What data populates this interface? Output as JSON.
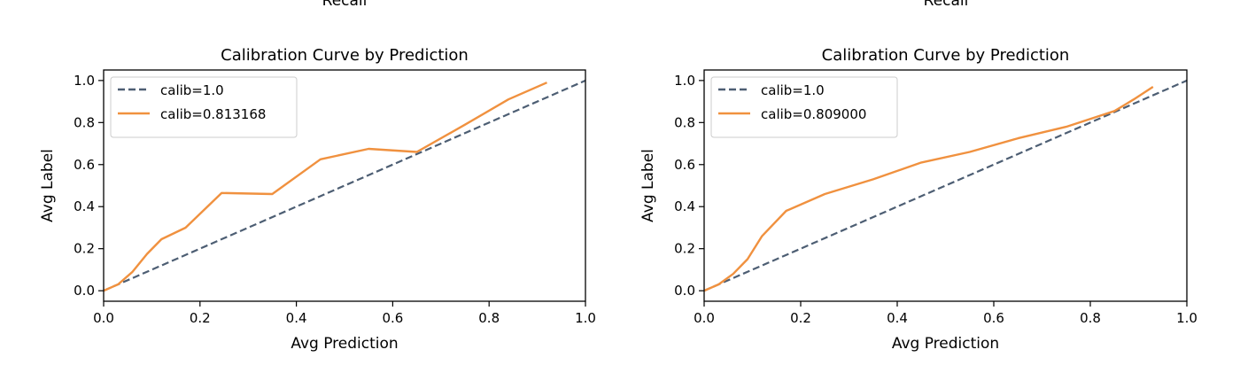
{
  "top_cut_text": [
    "Recall",
    "Recall"
  ],
  "chart_data": [
    {
      "type": "line",
      "title": "Calibration Curve by Prediction",
      "xlabel": "Avg Prediction",
      "ylabel": "Avg Label",
      "xlim": [
        0.0,
        1.0
      ],
      "ylim": [
        -0.05,
        1.05
      ],
      "xticks": [
        "0.0",
        "0.2",
        "0.4",
        "0.6",
        "0.8",
        "1.0"
      ],
      "yticks": [
        "0.0",
        "0.2",
        "0.4",
        "0.6",
        "0.8",
        "1.0"
      ],
      "grid": false,
      "legend_position": "top-left",
      "series": [
        {
          "name": "calib=1.0",
          "style": "dashed",
          "color": "#4d5e73",
          "x": [
            0.0,
            1.0
          ],
          "y": [
            0.0,
            1.0
          ]
        },
        {
          "name": "calib=0.813168",
          "style": "solid",
          "color": "#f0913f",
          "x": [
            0.0,
            0.03,
            0.06,
            0.09,
            0.12,
            0.17,
            0.245,
            0.35,
            0.45,
            0.55,
            0.65,
            0.75,
            0.84,
            0.92
          ],
          "y": [
            0.0,
            0.03,
            0.09,
            0.175,
            0.245,
            0.3,
            0.465,
            0.46,
            0.625,
            0.675,
            0.66,
            0.79,
            0.91,
            0.99
          ]
        }
      ]
    },
    {
      "type": "line",
      "title": "Calibration Curve by Prediction",
      "xlabel": "Avg Prediction",
      "ylabel": "Avg Label",
      "xlim": [
        0.0,
        1.0
      ],
      "ylim": [
        -0.05,
        1.05
      ],
      "xticks": [
        "0.0",
        "0.2",
        "0.4",
        "0.6",
        "0.8",
        "1.0"
      ],
      "yticks": [
        "0.0",
        "0.2",
        "0.4",
        "0.6",
        "0.8",
        "1.0"
      ],
      "grid": false,
      "legend_position": "top-left",
      "series": [
        {
          "name": "calib=1.0",
          "style": "dashed",
          "color": "#4d5e73",
          "x": [
            0.0,
            1.0
          ],
          "y": [
            0.0,
            1.0
          ]
        },
        {
          "name": "calib=0.809000",
          "style": "solid",
          "color": "#f0913f",
          "x": [
            0.0,
            0.03,
            0.06,
            0.09,
            0.12,
            0.17,
            0.25,
            0.35,
            0.45,
            0.55,
            0.65,
            0.75,
            0.85,
            0.89,
            0.93
          ],
          "y": [
            0.0,
            0.03,
            0.08,
            0.15,
            0.26,
            0.38,
            0.46,
            0.53,
            0.61,
            0.66,
            0.725,
            0.78,
            0.855,
            0.91,
            0.97
          ]
        }
      ]
    }
  ]
}
